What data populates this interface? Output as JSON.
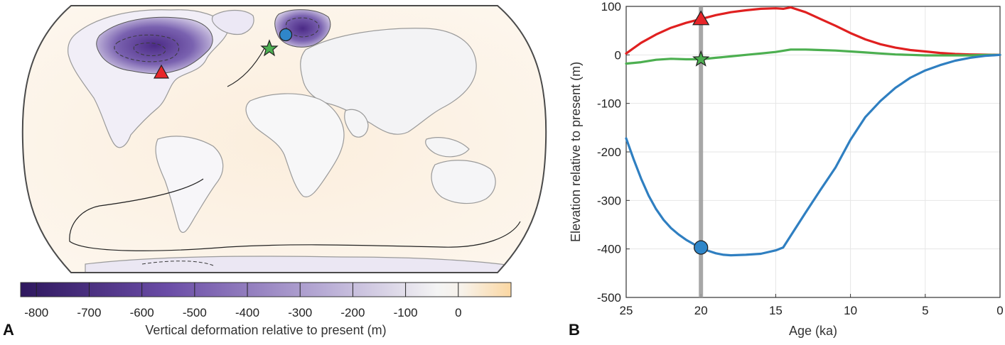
{
  "panels": {
    "a_label": "A",
    "b_label": "B"
  },
  "colorbar": {
    "label": "Vertical deformation relative to present (m)",
    "ticks": [
      "-800",
      "-700",
      "-600",
      "-500",
      "-400",
      "-300",
      "-200",
      "-100",
      "0"
    ],
    "range": [
      -830,
      100
    ],
    "colors": {
      "deep": "#3e1f73",
      "mid": "#a293c8",
      "zero": "#f6f6f6",
      "warm": "#fbd9a6"
    }
  },
  "map": {
    "colors": {
      "ocean": "#fbf1e4",
      "land_stroke": "#9a9a9a",
      "frame": "#4a4a4a",
      "ice": "#6a4aa0"
    },
    "markers": [
      {
        "name": "triangle",
        "color": "#e8262a"
      },
      {
        "name": "star",
        "color": "#4caf50"
      },
      {
        "name": "circle",
        "color": "#2f86c9"
      }
    ]
  },
  "chart_data": {
    "type": "line",
    "xlabel": "Age (ka)",
    "ylabel": "Elevation relative to present (m)",
    "xlim": [
      25,
      0
    ],
    "ylim": [
      -500,
      100
    ],
    "x_ticks": [
      25,
      20,
      15,
      10,
      5,
      0
    ],
    "y_ticks": [
      100,
      0,
      -100,
      -200,
      -300,
      -400,
      -500
    ],
    "grid": true,
    "highlight_age": 20,
    "series": [
      {
        "color": "#e02020",
        "marker": "triangle",
        "x": [
          25,
          24,
          23,
          22,
          21,
          20,
          19,
          18,
          17,
          16,
          15,
          14.5,
          14,
          13,
          12,
          11,
          10,
          9,
          8,
          7,
          6,
          5,
          4,
          3,
          2,
          1,
          0
        ],
        "y": [
          3,
          25,
          42,
          56,
          66,
          74,
          82,
          88,
          92,
          95,
          96,
          95,
          98,
          88,
          74,
          60,
          45,
          32,
          22,
          15,
          10,
          7,
          4,
          2,
          1,
          0.5,
          0
        ]
      },
      {
        "color": "#4caf50",
        "marker": "star",
        "x": [
          25,
          24,
          23,
          22,
          21,
          20,
          19,
          18,
          17,
          16,
          15,
          14,
          13,
          12,
          11,
          10,
          9,
          8,
          7,
          6,
          5,
          4,
          3,
          2,
          1,
          0
        ],
        "y": [
          -18,
          -15,
          -10,
          -8,
          -9,
          -9,
          -6,
          -3,
          0,
          3,
          6,
          11,
          11,
          10,
          9,
          7,
          5,
          3,
          1,
          0,
          -1,
          -1,
          -1,
          -1,
          0,
          0
        ]
      },
      {
        "color": "#2f7fc1",
        "marker": "circle",
        "x": [
          25,
          24.5,
          24,
          23.5,
          23,
          22.5,
          22,
          21.5,
          21,
          20.5,
          20,
          19.5,
          19,
          18.5,
          18,
          17,
          16,
          15,
          14.5,
          14,
          13,
          12,
          11,
          10,
          9,
          8,
          7,
          6,
          5,
          4,
          3,
          2,
          1,
          0
        ],
        "y": [
          -172,
          -215,
          -255,
          -290,
          -318,
          -340,
          -357,
          -370,
          -381,
          -390,
          -397,
          -404,
          -409,
          -412,
          -413,
          -412,
          -410,
          -403,
          -397,
          -373,
          -325,
          -278,
          -232,
          -175,
          -128,
          -95,
          -68,
          -47,
          -32,
          -21,
          -12,
          -6,
          -2,
          0
        ]
      }
    ]
  }
}
